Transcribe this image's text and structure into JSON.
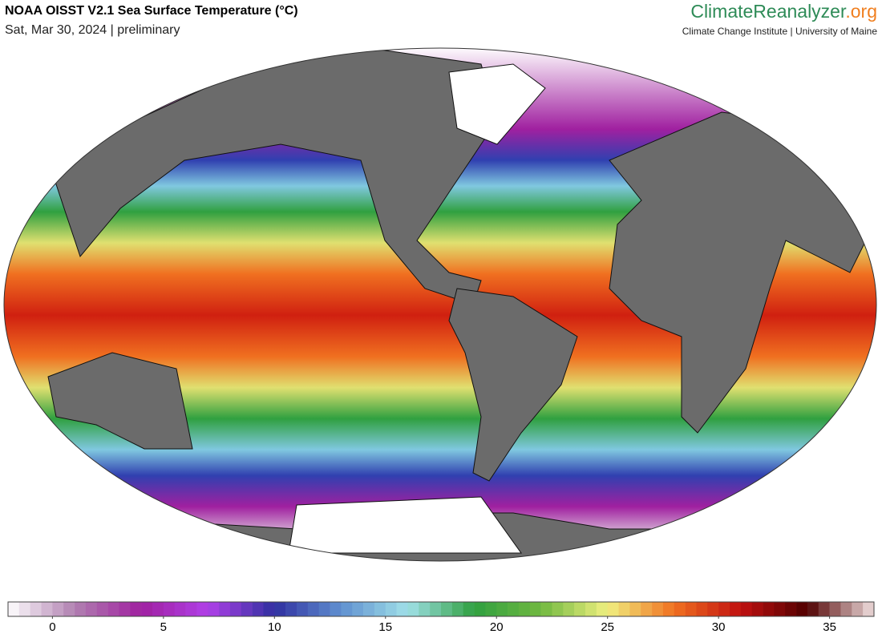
{
  "header": {
    "title": "NOAA OISST V2.1 Sea Surface Temperature (°C)",
    "subtitle": "Sat, Mar 30, 2024 | preliminary",
    "brand_main": "ClimateReanalyzer",
    "brand_suffix": ".org",
    "brand_sub": "Climate Change Institute | University of Maine"
  },
  "colorbar": {
    "lim": [
      -2,
      37
    ],
    "ticks": [
      0,
      5,
      10,
      15,
      20,
      25,
      30,
      35
    ],
    "colors": [
      "#ffffff",
      "#b080b0",
      "#a020a0",
      "#b040e8",
      "#3030a0",
      "#6090d0",
      "#a0e0e8",
      "#30a040",
      "#70b840",
      "#f0f080",
      "#f07020",
      "#c01010",
      "#500000",
      "#f0e0e0"
    ]
  }
}
